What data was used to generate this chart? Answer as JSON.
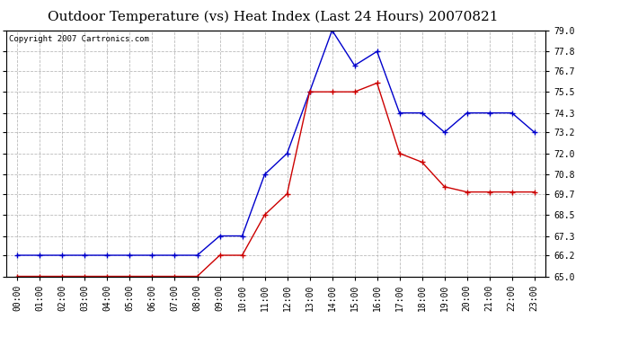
{
  "title": "Outdoor Temperature (vs) Heat Index (Last 24 Hours) 20070821",
  "copyright_text": "Copyright 2007 Cartronics.com",
  "hours": [
    "00:00",
    "01:00",
    "02:00",
    "03:00",
    "04:00",
    "05:00",
    "06:00",
    "07:00",
    "08:00",
    "09:00",
    "10:00",
    "11:00",
    "12:00",
    "13:00",
    "14:00",
    "15:00",
    "16:00",
    "17:00",
    "18:00",
    "19:00",
    "20:00",
    "21:00",
    "22:00",
    "23:00"
  ],
  "blue_line": [
    66.2,
    66.2,
    66.2,
    66.2,
    66.2,
    66.2,
    66.2,
    66.2,
    66.2,
    67.3,
    67.3,
    70.8,
    72.0,
    75.5,
    79.0,
    77.0,
    77.8,
    74.3,
    74.3,
    73.2,
    74.3,
    74.3,
    74.3,
    73.2
  ],
  "red_line": [
    65.0,
    65.0,
    65.0,
    65.0,
    65.0,
    65.0,
    65.0,
    65.0,
    65.0,
    66.2,
    66.2,
    68.5,
    69.7,
    75.5,
    75.5,
    75.5,
    76.0,
    72.0,
    71.5,
    70.1,
    69.8,
    69.8,
    69.8,
    69.8
  ],
  "ylim": [
    65.0,
    79.0
  ],
  "yticks": [
    65.0,
    66.2,
    67.3,
    68.5,
    69.7,
    70.8,
    72.0,
    73.2,
    74.3,
    75.5,
    76.7,
    77.8,
    79.0
  ],
  "ytick_labels": [
    "65.0",
    "66.2",
    "67.3",
    "68.5",
    "69.7",
    "70.8",
    "72.0",
    "73.2",
    "74.3",
    "75.5",
    "76.7",
    "77.8",
    "79.0"
  ],
  "blue_color": "#0000cc",
  "red_color": "#cc0000",
  "grid_color": "#aaaaaa",
  "bg_color": "#ffffff",
  "title_fontsize": 11,
  "tick_fontsize": 7,
  "copyright_fontsize": 6.5
}
